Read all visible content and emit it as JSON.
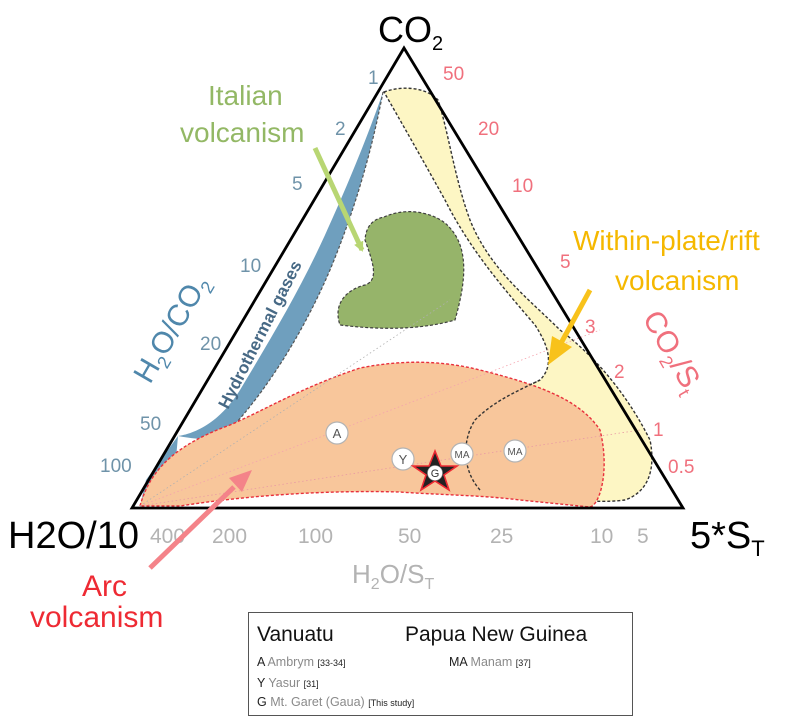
{
  "vertices": {
    "top": "CO",
    "top_sub": "2",
    "left": "H2O/10",
    "right": "5*S",
    "right_sub": "T"
  },
  "axes": {
    "h2o_co2": {
      "label_a": "H",
      "label_b": "2",
      "label_c": "O/CO",
      "label_d": "2",
      "ticks": [
        "1",
        "2",
        "5",
        "10",
        "20",
        "50",
        "100"
      ]
    },
    "co2_st": {
      "label_a": "CO",
      "label_b": "2",
      "label_c": "/S",
      "label_d": "t",
      "ticks": [
        "50",
        "20",
        "10",
        "5",
        "3",
        "2",
        "1",
        "0.5"
      ]
    },
    "h2o_st": {
      "label_a": "H",
      "label_b": "2",
      "label_c": "O/S",
      "label_d": "T",
      "ticks": [
        "400",
        "200",
        "100",
        "50",
        "25",
        "10",
        "5"
      ]
    }
  },
  "fields": {
    "hydrothermal": "Hydrothermal gases",
    "italian_line1": "Italian",
    "italian_line2": "volcanism",
    "withinplate_line1": "Within-plate/rift",
    "withinplate_line2": "volcanism",
    "arc_line1": "Arc",
    "arc_line2": "volcanism"
  },
  "markers": {
    "A": "A",
    "Y": "Y",
    "G": "G",
    "MA1": "MA",
    "MA2": "MA"
  },
  "legend": {
    "vanuatu": "Vanuatu",
    "png": "Papua New Guinea",
    "rows": [
      {
        "code": "A",
        "name": "Ambrym",
        "ref": "[33-34]"
      },
      {
        "code": "Y",
        "name": "Yasur",
        "ref": "[31]"
      },
      {
        "code": "G",
        "name": "Mt. Garet (Gaua)",
        "ref": "[This study]"
      },
      {
        "code": "MA",
        "name": "Manam",
        "ref": "[37]"
      }
    ]
  },
  "colors": {
    "hydrothermal": "#6f9fbe",
    "italian": "#96b46a",
    "withinplate": "#fdf6c4",
    "arc": "#f8c69b",
    "arc_label": "#ee2a33",
    "italian_label": "#93b865",
    "withinplate_label": "#f5b800",
    "blue_ticks": "#6f93a9",
    "red_ticks": "#f0707d",
    "grey_ticks": "#b3b3b3"
  }
}
